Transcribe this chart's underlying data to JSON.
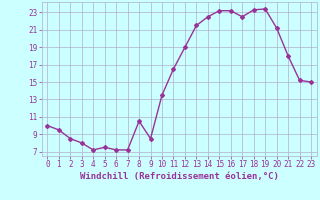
{
  "xlabel": "Windchill (Refroidissement éolien,°C)",
  "x": [
    0,
    1,
    2,
    3,
    4,
    5,
    6,
    7,
    8,
    9,
    10,
    11,
    12,
    13,
    14,
    15,
    16,
    17,
    18,
    19,
    20,
    21,
    22,
    23
  ],
  "y": [
    10.0,
    9.5,
    8.5,
    8.0,
    7.2,
    7.5,
    7.2,
    7.2,
    10.5,
    8.5,
    13.5,
    16.5,
    19.0,
    21.5,
    22.5,
    23.2,
    23.2,
    22.5,
    23.3,
    23.4,
    21.2,
    18.0,
    15.2,
    15.0
  ],
  "line_color": "#993399",
  "marker": "D",
  "marker_size": 2,
  "bg_color": "#ccffff",
  "grid_color": "#b0b0cc",
  "ylim": [
    6.5,
    24.2
  ],
  "xlim": [
    -0.5,
    23.5
  ],
  "yticks": [
    7,
    9,
    11,
    13,
    15,
    17,
    19,
    21,
    23
  ],
  "xticks": [
    0,
    1,
    2,
    3,
    4,
    5,
    6,
    7,
    8,
    9,
    10,
    11,
    12,
    13,
    14,
    15,
    16,
    17,
    18,
    19,
    20,
    21,
    22,
    23
  ],
  "tick_fontsize": 5.5,
  "xlabel_fontsize": 6.5,
  "line_width": 1.0
}
